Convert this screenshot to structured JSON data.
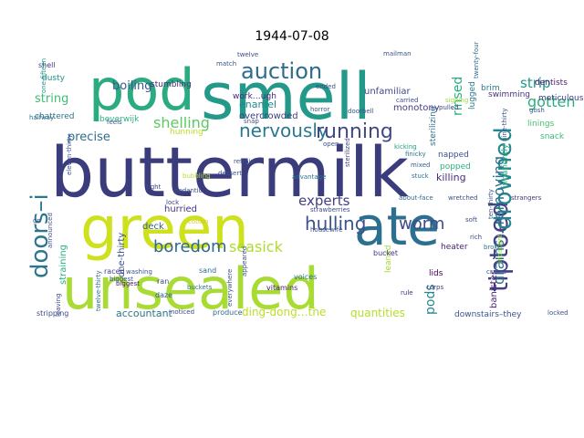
{
  "chart_data": {
    "type": "wordcloud",
    "title": "1944-07-08",
    "words": [
      {
        "text": "buttermilk",
        "color": "#3b3c7c"
      },
      {
        "text": "smell",
        "color": "#23998a"
      },
      {
        "text": "pod",
        "color": "#2bab82"
      },
      {
        "text": "green",
        "color": "#cde11d"
      },
      {
        "text": "unsealed",
        "color": "#a8db34"
      },
      {
        "text": "ate",
        "color": "#2d6f8e"
      },
      {
        "text": "auction",
        "color": "#2f6b8e"
      },
      {
        "text": "tiptoed",
        "color": "#433e85"
      },
      {
        "text": "drowned",
        "color": "#25848e"
      },
      {
        "text": "doors–i",
        "color": "#2a768e"
      },
      {
        "text": "nervously",
        "color": "#2a788e"
      },
      {
        "text": "running",
        "color": "#3f4889"
      },
      {
        "text": "shelling",
        "color": "#5ec962"
      },
      {
        "text": "gotten",
        "color": "#29af7f"
      },
      {
        "text": "hulling",
        "color": "#3b528b"
      },
      {
        "text": "boredom",
        "color": "#31688e"
      },
      {
        "text": "worm",
        "color": "#3e4a89"
      },
      {
        "text": "seasick",
        "color": "#addc30"
      },
      {
        "text": "drains…removing",
        "color": "#2c738e"
      },
      {
        "text": "experts",
        "color": "#423f85"
      },
      {
        "text": "pods",
        "color": "#24878e"
      },
      {
        "text": "strip",
        "color": "#1f978b"
      },
      {
        "text": "rinsed",
        "color": "#27ad81"
      },
      {
        "text": "boiling",
        "color": "#38588c"
      },
      {
        "text": "string",
        "color": "#3fbc73"
      },
      {
        "text": "precise",
        "color": "#2e6e8e"
      },
      {
        "text": "enamel",
        "color": "#238a8d"
      },
      {
        "text": "ding-dong…the",
        "color": "#bddf26"
      },
      {
        "text": "quantities",
        "color": "#b5de2b"
      },
      {
        "text": "accountant",
        "color": "#2b758e"
      },
      {
        "text": "one-thirty",
        "color": "#3a538b"
      },
      {
        "text": "killing",
        "color": "#472d7b"
      },
      {
        "text": "banister",
        "color": "#482475"
      },
      {
        "text": "straining",
        "color": "#2ab07f"
      },
      {
        "text": "monotony",
        "color": "#453882"
      },
      {
        "text": "overcrowded",
        "color": "#433d84"
      },
      {
        "text": "unfamiliar",
        "color": "#3e4989"
      },
      {
        "text": "stumbling",
        "color": "#472c7a"
      },
      {
        "text": "work…ugh",
        "color": "#482878"
      },
      {
        "text": "chattered",
        "color": "#2c738e"
      },
      {
        "text": "beverwijk",
        "color": "#2db27d"
      },
      {
        "text": "hunning",
        "color": "#bade28"
      },
      {
        "text": "hurried",
        "color": "#453581"
      },
      {
        "text": "deck",
        "color": "#375b8d"
      },
      {
        "text": "napped",
        "color": "#3b518b"
      },
      {
        "text": "popped",
        "color": "#2db27d"
      },
      {
        "text": "sterilizing",
        "color": "#2e6f8e"
      },
      {
        "text": "inpatiently",
        "color": "#2fb47c"
      },
      {
        "text": "snack",
        "color": "#3aba76"
      },
      {
        "text": "linings",
        "color": "#46c06f"
      },
      {
        "text": "heater",
        "color": "#482475"
      },
      {
        "text": "lids",
        "color": "#440154"
      },
      {
        "text": "leaned",
        "color": "#a2da37"
      },
      {
        "text": "downstairs–they",
        "color": "#3b528b"
      },
      {
        "text": "meticulous",
        "color": "#424186"
      },
      {
        "text": "dentists",
        "color": "#481a6c"
      },
      {
        "text": "swimming",
        "color": "#46337f"
      },
      {
        "text": "lugged",
        "color": "#287c8e"
      },
      {
        "text": "brim",
        "color": "#2a788e"
      },
      {
        "text": "shell",
        "color": "#443a83"
      },
      {
        "text": "dusty",
        "color": "#20928c"
      },
      {
        "text": "produce",
        "color": "#31688e"
      },
      {
        "text": "stripping",
        "color": "#3e4a89"
      },
      {
        "text": "bucket",
        "color": "#463480"
      },
      {
        "text": "vitamins",
        "color": "#482173"
      },
      {
        "text": "voices",
        "color": "#2c728e"
      },
      {
        "text": "buckets",
        "color": "#2c738e"
      },
      {
        "text": "ran",
        "color": "#3e4a89"
      },
      {
        "text": "sand",
        "color": "#2d708e"
      },
      {
        "text": "raced",
        "color": "#424186"
      },
      {
        "text": "daze",
        "color": "#355f8d"
      },
      {
        "text": "rule",
        "color": "#46307e"
      },
      {
        "text": "corps",
        "color": "#453882"
      },
      {
        "text": "locked",
        "color": "#3b528b"
      },
      {
        "text": "biggest",
        "color": "#48186a"
      },
      {
        "text": "cotton",
        "color": "#ddc62a"
      },
      {
        "text": "pedantic",
        "color": "#3c508b"
      },
      {
        "text": "refrain",
        "color": "#3d4d8a"
      },
      {
        "text": "dessert",
        "color": "#3b528b"
      },
      {
        "text": "finicky",
        "color": "#2a788e"
      },
      {
        "text": "mixed",
        "color": "#355e8d"
      },
      {
        "text": "stuck",
        "color": "#2c738e"
      },
      {
        "text": "soft",
        "color": "#3d4e8a"
      },
      {
        "text": "inpatient",
        "color": "#9bd93c"
      },
      {
        "text": "about-face",
        "color": "#31688e"
      },
      {
        "text": "wretched",
        "color": "#3b528b"
      },
      {
        "text": "broke",
        "color": "#2c728e"
      },
      {
        "text": "strangers",
        "color": "#453781"
      },
      {
        "text": "kicking",
        "color": "#1f9f88"
      },
      {
        "text": "advantage",
        "color": "#2c728e"
      },
      {
        "text": "housewife",
        "color": "#3a538b"
      },
      {
        "text": "strawberries",
        "color": "#3d4e8a"
      },
      {
        "text": "lock",
        "color": "#424086"
      },
      {
        "text": "feels",
        "color": "#3b528b"
      },
      {
        "text": "snap",
        "color": "#3b528b"
      },
      {
        "text": "open",
        "color": "#3c508b"
      },
      {
        "text": "horror",
        "color": "#3a548c"
      },
      {
        "text": "ended",
        "color": "#3d4d8a"
      },
      {
        "text": "match",
        "color": "#3b528b"
      },
      {
        "text": "twelve",
        "color": "#3f4889"
      },
      {
        "text": "mailman",
        "color": "#3a548c"
      },
      {
        "text": "doorbell",
        "color": "#3b528b"
      },
      {
        "text": "pulled",
        "color": "#3e4a89"
      },
      {
        "text": "sighing",
        "color": "#a0da39"
      },
      {
        "text": "twenty-four",
        "color": "#31688e"
      },
      {
        "text": "gosh",
        "color": "#3b528b"
      },
      {
        "text": "halfway",
        "color": "#2c728e"
      },
      {
        "text": "one-fifteen",
        "color": "#20928c"
      },
      {
        "text": "gn",
        "color": "#3b528b"
      },
      {
        "text": "announced",
        "color": "#3b528b"
      },
      {
        "text": "eleven-thirty",
        "color": "#3b528b"
      },
      {
        "text": "twelve-thirty",
        "color": "#31688e"
      },
      {
        "text": "leaving",
        "color": "#3e4a89"
      },
      {
        "text": "washing",
        "color": "#3b528b"
      },
      {
        "text": "biggest",
        "color": "#3b528b"
      },
      {
        "text": "everywhere",
        "color": "#3b528b"
      },
      {
        "text": "appeared",
        "color": "#3b528b"
      },
      {
        "text": "sterilized",
        "color": "#3e4a89"
      },
      {
        "text": "carried",
        "color": "#3e4a89"
      },
      {
        "text": "ten-thirty",
        "color": "#3b528b"
      },
      {
        "text": "nine-thirty",
        "color": "#3b528b"
      },
      {
        "text": "crates",
        "color": "#3b528b"
      },
      {
        "text": "bubbling",
        "color": "#bade28"
      },
      {
        "text": "noticed",
        "color": "#3e4a89"
      },
      {
        "text": "tight",
        "color": "#3e4a89"
      },
      {
        "text": "rich",
        "color": "#3e4a89"
      }
    ]
  }
}
